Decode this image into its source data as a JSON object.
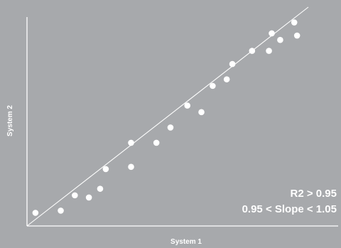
{
  "chart_data": {
    "type": "scatter",
    "title": "",
    "xlabel": "System 1",
    "ylabel": "System 2",
    "xlim": [
      0,
      100
    ],
    "ylim": [
      0,
      100
    ],
    "grid": false,
    "annotations": [
      "R2 > 0.95",
      "0.95 < Slope < 1.05"
    ],
    "fit_line": {
      "x": [
        0,
        100
      ],
      "y": [
        0,
        100
      ]
    },
    "points": [
      {
        "x": 3,
        "y": 6
      },
      {
        "x": 12,
        "y": 7
      },
      {
        "x": 17,
        "y": 14
      },
      {
        "x": 22,
        "y": 13
      },
      {
        "x": 26,
        "y": 17
      },
      {
        "x": 28,
        "y": 26
      },
      {
        "x": 37,
        "y": 27
      },
      {
        "x": 37,
        "y": 38
      },
      {
        "x": 46,
        "y": 38
      },
      {
        "x": 51,
        "y": 45
      },
      {
        "x": 57,
        "y": 55
      },
      {
        "x": 62,
        "y": 52
      },
      {
        "x": 66,
        "y": 64
      },
      {
        "x": 71,
        "y": 67
      },
      {
        "x": 73,
        "y": 74
      },
      {
        "x": 80,
        "y": 80
      },
      {
        "x": 86,
        "y": 80
      },
      {
        "x": 87,
        "y": 88
      },
      {
        "x": 90,
        "y": 85
      },
      {
        "x": 95,
        "y": 93
      },
      {
        "x": 96,
        "y": 87
      }
    ]
  }
}
